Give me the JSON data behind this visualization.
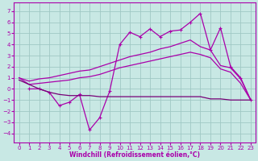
{
  "xlabel": "Windchill (Refroidissement éolien,°C)",
  "background_color": "#c8e8e4",
  "grid_color": "#a0c8c4",
  "line_color": "#aa00aa",
  "x_min": -0.5,
  "x_max": 23.5,
  "y_min": -4.8,
  "y_max": 7.8,
  "yticks": [
    -4,
    -3,
    -2,
    -1,
    0,
    1,
    2,
    3,
    4,
    5,
    6,
    7
  ],
  "xticks": [
    0,
    1,
    2,
    3,
    4,
    5,
    6,
    7,
    8,
    9,
    10,
    11,
    12,
    13,
    14,
    15,
    16,
    17,
    18,
    19,
    20,
    21,
    22,
    23
  ],
  "jagged_x": [
    1,
    2,
    3,
    4,
    5,
    6,
    7,
    8,
    9,
    10,
    11,
    12,
    13,
    14,
    15,
    16,
    17,
    18,
    19,
    20,
    21,
    22,
    23
  ],
  "jagged_y": [
    0.0,
    0.0,
    -0.3,
    -1.5,
    -1.2,
    -0.5,
    -3.7,
    -2.6,
    -0.2,
    4.0,
    5.1,
    4.7,
    5.4,
    4.7,
    5.2,
    5.3,
    6.0,
    6.8,
    3.5,
    5.5,
    2.0,
    1.0,
    -1.0
  ],
  "upper_x": [
    0,
    1,
    2,
    3,
    4,
    5,
    6,
    7,
    8,
    9,
    10,
    11,
    12,
    13,
    14,
    15,
    16,
    17,
    18,
    19,
    20,
    21,
    22,
    23
  ],
  "upper_y": [
    1.0,
    0.7,
    0.9,
    1.0,
    1.2,
    1.4,
    1.6,
    1.7,
    2.0,
    2.3,
    2.6,
    2.9,
    3.1,
    3.3,
    3.6,
    3.8,
    4.1,
    4.4,
    3.8,
    3.5,
    2.1,
    1.9,
    0.9,
    -1.0
  ],
  "mid_x": [
    0,
    1,
    2,
    3,
    4,
    5,
    6,
    7,
    8,
    9,
    10,
    11,
    12,
    13,
    14,
    15,
    16,
    17,
    18,
    19,
    20,
    21,
    22,
    23
  ],
  "mid_y": [
    1.0,
    0.4,
    0.5,
    0.6,
    0.7,
    0.8,
    1.0,
    1.1,
    1.3,
    1.6,
    1.9,
    2.1,
    2.3,
    2.5,
    2.7,
    2.9,
    3.1,
    3.3,
    3.1,
    2.8,
    1.8,
    1.5,
    0.5,
    -1.0
  ],
  "flat_x": [
    0,
    2,
    3,
    4,
    5,
    6,
    7,
    8,
    9,
    10,
    11,
    12,
    13,
    14,
    15,
    16,
    17,
    18,
    19,
    20,
    21,
    22,
    23
  ],
  "flat_y": [
    0.8,
    0.0,
    -0.3,
    -0.5,
    -0.6,
    -0.6,
    -0.6,
    -0.7,
    -0.7,
    -0.7,
    -0.7,
    -0.7,
    -0.7,
    -0.7,
    -0.7,
    -0.7,
    -0.7,
    -0.7,
    -0.9,
    -0.9,
    -1.0,
    -1.0,
    -1.0
  ]
}
